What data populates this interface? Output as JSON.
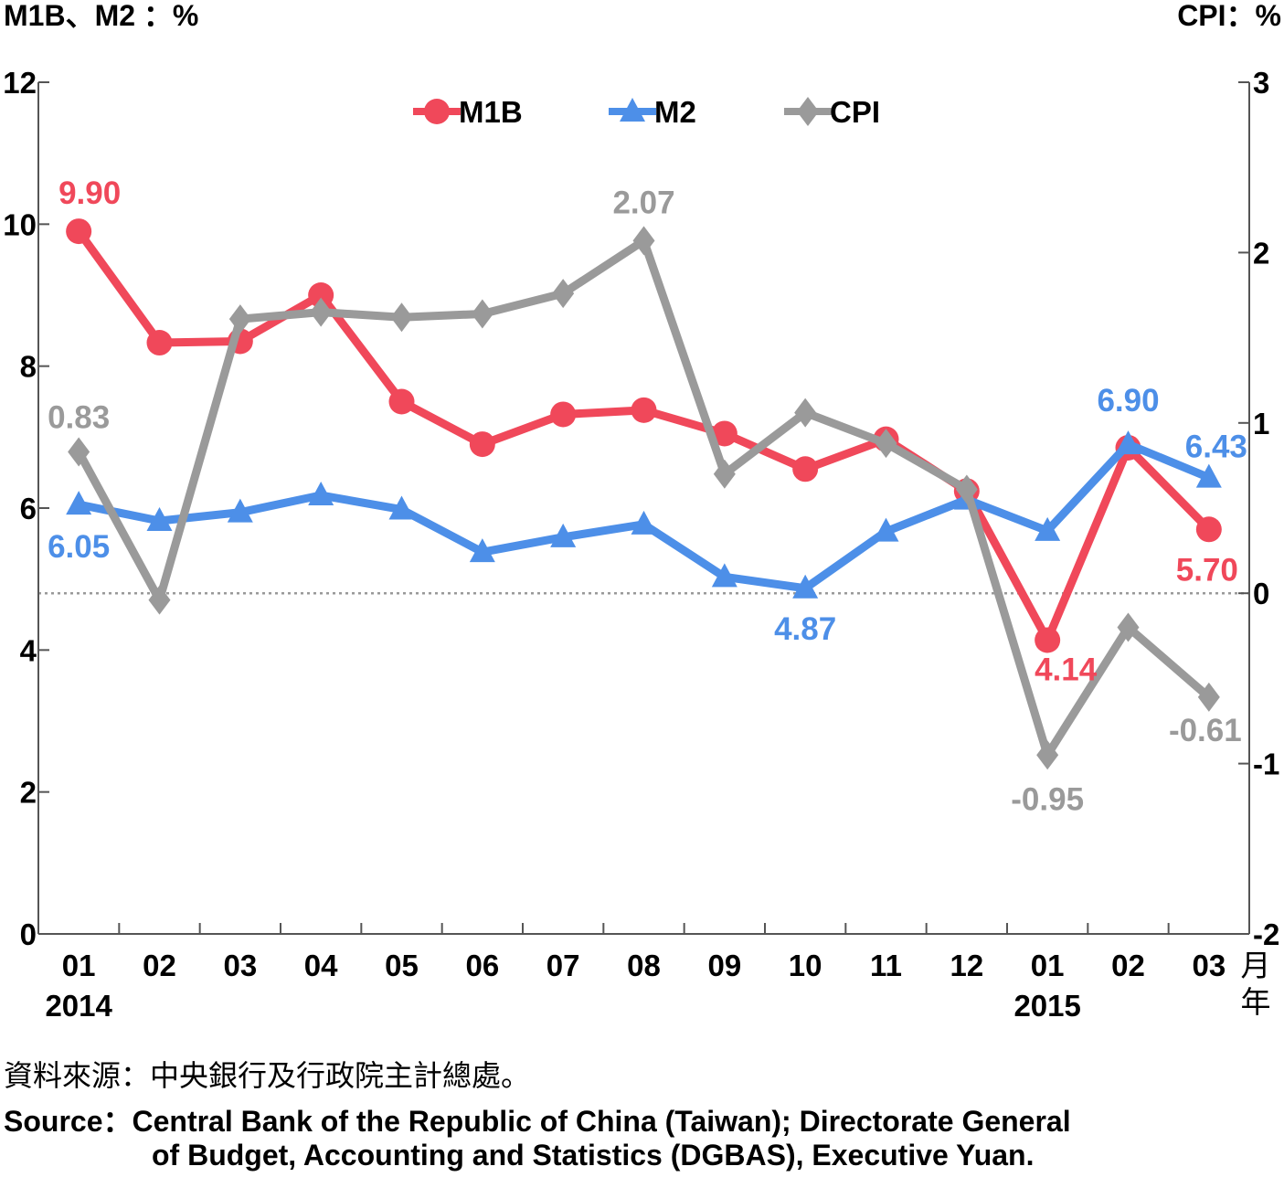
{
  "chart_data": {
    "type": "line",
    "left_axis_label": "M1B、M2 ：%",
    "right_axis_label": "CPI：%",
    "x_unit_month": "月",
    "x_unit_year": "年",
    "categories": [
      "01",
      "02",
      "03",
      "04",
      "05",
      "06",
      "07",
      "08",
      "09",
      "10",
      "11",
      "12",
      "01",
      "02",
      "03"
    ],
    "year_labels": [
      {
        "index": 0,
        "label": "2014"
      },
      {
        "index": 12,
        "label": "2015"
      }
    ],
    "y_left": {
      "min": 0,
      "max": 12,
      "ticks": [
        0,
        2,
        4,
        6,
        8,
        10,
        12
      ]
    },
    "y_right": {
      "min": -2,
      "max": 3,
      "ticks": [
        -2,
        -1,
        0,
        1,
        2,
        3
      ]
    },
    "zero_reference_line": "dotted line at CPI 0",
    "legend_position": "top-center",
    "series": [
      {
        "name": "M1B",
        "axis": "left",
        "color": "#f0485a",
        "marker": "circle",
        "values": [
          9.9,
          8.33,
          8.35,
          9.0,
          7.5,
          6.9,
          7.32,
          7.38,
          7.05,
          6.55,
          6.97,
          6.24,
          4.14,
          6.85,
          5.7
        ],
        "labels": [
          {
            "index": 0,
            "text": "9.90"
          },
          {
            "index": 12,
            "text": "4.14"
          },
          {
            "index": 14,
            "text": "5.70"
          }
        ]
      },
      {
        "name": "M2",
        "axis": "left",
        "color": "#4d8fe8",
        "marker": "triangle",
        "values": [
          6.05,
          5.82,
          5.94,
          6.18,
          5.98,
          5.38,
          5.59,
          5.77,
          5.03,
          4.87,
          5.67,
          6.12,
          5.68,
          6.9,
          6.43
        ],
        "labels": [
          {
            "index": 0,
            "text": "6.05"
          },
          {
            "index": 9,
            "text": "4.87"
          },
          {
            "index": 13,
            "text": "6.90"
          },
          {
            "index": 14,
            "text": "6.43"
          }
        ]
      },
      {
        "name": "CPI",
        "axis": "right",
        "color": "#9a9a9a",
        "marker": "diamond",
        "values": [
          0.83,
          -0.04,
          1.61,
          1.65,
          1.62,
          1.64,
          1.76,
          2.07,
          0.7,
          1.06,
          0.88,
          0.61,
          -0.95,
          -0.2,
          -0.61
        ],
        "labels": [
          {
            "index": 0,
            "text": "0.83"
          },
          {
            "index": 7,
            "text": "2.07"
          },
          {
            "index": 12,
            "text": "-0.95"
          },
          {
            "index": 14,
            "text": "-0.61"
          }
        ]
      }
    ]
  },
  "notes": {
    "source_zh": "資料來源：中央銀行及行政院主計總處。",
    "source_en_line1": "Source：Central Bank of the Republic of China (Taiwan); Directorate General",
    "source_en_line2": "of Budget, Accounting and Statistics (DGBAS), Executive Yuan."
  }
}
